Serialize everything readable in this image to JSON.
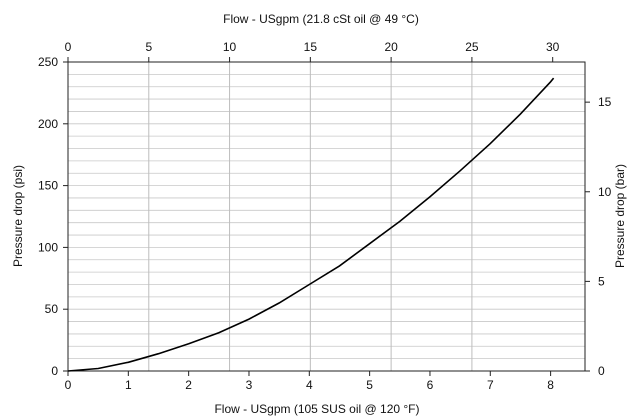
{
  "chart_data": {
    "type": "line",
    "title": "",
    "top_axis": {
      "label": "Flow - USgpm (21.8 cSt oil @ 49 °C)",
      "range": [
        0,
        32
      ],
      "ticks": [
        "0",
        "5",
        "10",
        "15",
        "20",
        "25",
        "30"
      ],
      "tick_values": [
        0,
        5,
        10,
        15,
        20,
        25,
        30
      ]
    },
    "bottom_axis": {
      "label": "Flow - USgpm (105 SUS oil @ 120 °F)",
      "range": [
        0,
        8.57
      ],
      "ticks": [
        "0",
        "1",
        "2",
        "3",
        "4",
        "5",
        "6",
        "7",
        "8"
      ],
      "tick_values": [
        0,
        1,
        2,
        3,
        4,
        5,
        6,
        7,
        8
      ]
    },
    "left_axis": {
      "label": "Pressure drop (psi)",
      "range": [
        0,
        250
      ],
      "ticks": [
        "0",
        "50",
        "100",
        "150",
        "200",
        "250"
      ],
      "tick_values": [
        0,
        50,
        100,
        150,
        200,
        250
      ]
    },
    "right_axis": {
      "label": "Pressure drop (bar)",
      "range": [
        0,
        17.24
      ],
      "ticks": [
        "0",
        "5",
        "10",
        "15"
      ],
      "tick_values": [
        0,
        5,
        10,
        15
      ]
    },
    "grid": {
      "vertical_values_top_axis": [
        5,
        10,
        15,
        20,
        25
      ],
      "horizontal_minor_psi": 10
    },
    "series": [
      {
        "x": [
          0,
          0.5,
          1,
          1.5,
          2,
          2.5,
          3,
          3.5,
          4,
          4.5,
          5,
          5.5,
          6,
          6.5,
          7,
          7.5,
          8,
          8.05
        ],
        "y": [
          0,
          2,
          7,
          14,
          22,
          31,
          42,
          55,
          70,
          85,
          103,
          121,
          141,
          162,
          184,
          208,
          234,
          237
        ]
      }
    ]
  }
}
